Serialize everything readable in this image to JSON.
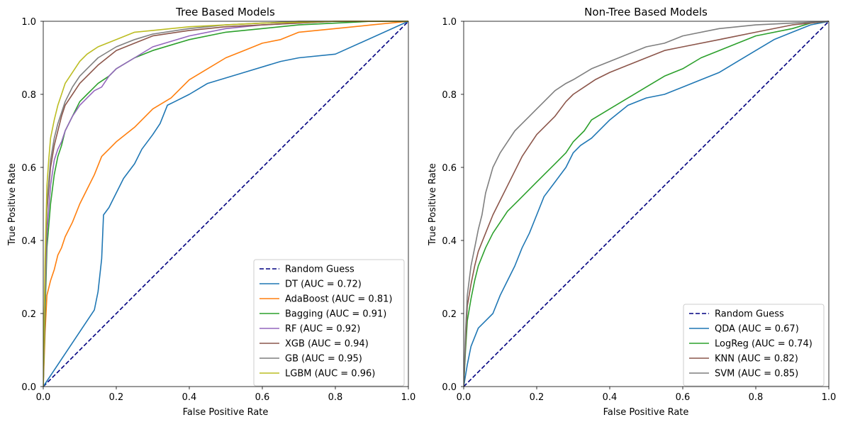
{
  "chart_data": [
    {
      "type": "line",
      "title": "Tree Based Models",
      "xlabel": "False Positive Rate",
      "ylabel": "True Positive Rate",
      "xlim": [
        0,
        1
      ],
      "ylim": [
        0,
        1
      ],
      "xticks": [
        "0.0",
        "0.2",
        "0.4",
        "0.6",
        "0.8",
        "1.0"
      ],
      "yticks": [
        "0.0",
        "0.2",
        "0.4",
        "0.6",
        "0.8",
        "1.0"
      ],
      "grid": false,
      "legend_position": "lower right",
      "series": [
        {
          "name": "Random Guess",
          "color": "#000080",
          "dash": true,
          "x": [
            0,
            1
          ],
          "y": [
            0,
            1
          ]
        },
        {
          "name": "DT (AUC = 0.72)",
          "color": "#1f77b4",
          "x": [
            0,
            0.14,
            0.15,
            0.16,
            0.165,
            0.18,
            0.19,
            0.22,
            0.25,
            0.27,
            0.3,
            0.32,
            0.34,
            0.36,
            0.4,
            0.45,
            0.55,
            0.65,
            0.7,
            0.8,
            1.0
          ],
          "y": [
            0,
            0.21,
            0.26,
            0.35,
            0.47,
            0.49,
            0.51,
            0.57,
            0.61,
            0.65,
            0.69,
            0.72,
            0.77,
            0.78,
            0.8,
            0.83,
            0.86,
            0.89,
            0.9,
            0.91,
            1.0
          ]
        }
      ]
    },
    {
      "type": "line",
      "title": "Non-Tree Based Models",
      "xlabel": "False Positive Rate",
      "ylabel": "True Positive Rate",
      "xlim": [
        0,
        1
      ],
      "ylim": [
        0,
        1
      ],
      "xticks": [
        "0.0",
        "0.2",
        "0.4",
        "0.6",
        "0.8",
        "1.0"
      ],
      "yticks": [
        "0.0",
        "0.2",
        "0.4",
        "0.6",
        "0.8",
        "1.0"
      ],
      "grid": false,
      "legend_position": "lower right",
      "series": [
        {
          "name": "Random Guess",
          "color": "#000080",
          "dash": true,
          "x": [
            0,
            1
          ],
          "y": [
            0,
            1
          ]
        }
      ]
    }
  ],
  "tree_curves": [
    {
      "name": "AdaBoost (AUC = 0.81)",
      "color": "#ff7f0e",
      "x": [
        0,
        0.005,
        0.01,
        0.02,
        0.03,
        0.04,
        0.05,
        0.06,
        0.08,
        0.1,
        0.12,
        0.14,
        0.16,
        0.18,
        0.2,
        0.25,
        0.3,
        0.35,
        0.4,
        0.45,
        0.5,
        0.55,
        0.6,
        0.65,
        0.7,
        0.8,
        0.9,
        1.0
      ],
      "y": [
        0,
        0.15,
        0.25,
        0.29,
        0.32,
        0.36,
        0.38,
        0.41,
        0.45,
        0.5,
        0.54,
        0.58,
        0.63,
        0.65,
        0.67,
        0.71,
        0.76,
        0.79,
        0.84,
        0.87,
        0.9,
        0.92,
        0.94,
        0.95,
        0.97,
        0.98,
        0.99,
        1.0
      ]
    },
    {
      "name": "Bagging (AUC = 0.91)",
      "color": "#2ca02c",
      "x": [
        0,
        0.005,
        0.01,
        0.02,
        0.03,
        0.04,
        0.05,
        0.06,
        0.08,
        0.1,
        0.12,
        0.15,
        0.18,
        0.2,
        0.25,
        0.3,
        0.4,
        0.5,
        0.6,
        0.7,
        0.8,
        0.9,
        1.0
      ],
      "y": [
        0,
        0.2,
        0.38,
        0.5,
        0.58,
        0.63,
        0.66,
        0.7,
        0.74,
        0.78,
        0.8,
        0.83,
        0.85,
        0.87,
        0.9,
        0.92,
        0.95,
        0.97,
        0.98,
        0.99,
        0.995,
        1.0,
        1.0
      ]
    },
    {
      "name": "RF (AUC = 0.92)",
      "color": "#9467bd",
      "x": [
        0,
        0.005,
        0.01,
        0.02,
        0.03,
        0.04,
        0.05,
        0.06,
        0.08,
        0.1,
        0.12,
        0.14,
        0.16,
        0.18,
        0.2,
        0.25,
        0.3,
        0.4,
        0.5,
        0.6,
        0.7,
        0.8,
        1.0
      ],
      "y": [
        0,
        0.25,
        0.42,
        0.55,
        0.62,
        0.65,
        0.67,
        0.7,
        0.74,
        0.77,
        0.79,
        0.81,
        0.82,
        0.85,
        0.87,
        0.9,
        0.93,
        0.96,
        0.98,
        0.99,
        0.995,
        1.0,
        1.0
      ]
    },
    {
      "name": "XGB (AUC = 0.94)",
      "color": "#8c564b",
      "x": [
        0,
        0.005,
        0.01,
        0.02,
        0.03,
        0.04,
        0.05,
        0.06,
        0.08,
        0.1,
        0.12,
        0.15,
        0.2,
        0.25,
        0.3,
        0.4,
        0.5,
        0.6,
        0.7,
        0.8,
        1.0
      ],
      "y": [
        0,
        0.3,
        0.48,
        0.6,
        0.66,
        0.7,
        0.74,
        0.77,
        0.8,
        0.83,
        0.85,
        0.88,
        0.92,
        0.94,
        0.96,
        0.975,
        0.985,
        0.99,
        0.995,
        1.0,
        1.0
      ]
    },
    {
      "name": "GB (AUC = 0.95)",
      "color": "#7f7f7f",
      "x": [
        0,
        0.005,
        0.01,
        0.02,
        0.03,
        0.04,
        0.05,
        0.06,
        0.08,
        0.1,
        0.12,
        0.15,
        0.2,
        0.25,
        0.3,
        0.4,
        0.5,
        0.6,
        0.7,
        0.8,
        1.0
      ],
      "y": [
        0,
        0.32,
        0.5,
        0.62,
        0.68,
        0.72,
        0.75,
        0.78,
        0.82,
        0.85,
        0.87,
        0.9,
        0.93,
        0.95,
        0.965,
        0.98,
        0.99,
        0.995,
        1.0,
        1.0,
        1.0
      ]
    },
    {
      "name": "LGBM (AUC = 0.96)",
      "color": "#bcbd22",
      "x": [
        0,
        0.005,
        0.01,
        0.015,
        0.02,
        0.03,
        0.04,
        0.05,
        0.06,
        0.08,
        0.1,
        0.12,
        0.15,
        0.2,
        0.25,
        0.3,
        0.4,
        0.5,
        0.6,
        0.8,
        1.0
      ],
      "y": [
        0,
        0.35,
        0.55,
        0.62,
        0.68,
        0.73,
        0.77,
        0.8,
        0.83,
        0.86,
        0.89,
        0.91,
        0.93,
        0.95,
        0.97,
        0.975,
        0.985,
        0.99,
        0.995,
        1.0,
        1.0
      ]
    }
  ],
  "nontree_curves": [
    {
      "name": "QDA (AUC = 0.67)",
      "color": "#1f77b4",
      "x": [
        0,
        0.01,
        0.02,
        0.04,
        0.06,
        0.08,
        0.1,
        0.12,
        0.14,
        0.16,
        0.18,
        0.2,
        0.22,
        0.25,
        0.28,
        0.3,
        0.32,
        0.35,
        0.4,
        0.45,
        0.5,
        0.55,
        0.6,
        0.65,
        0.7,
        0.75,
        0.8,
        0.85,
        0.9,
        0.95,
        1.0
      ],
      "y": [
        0,
        0.06,
        0.11,
        0.16,
        0.18,
        0.2,
        0.25,
        0.29,
        0.33,
        0.38,
        0.42,
        0.47,
        0.52,
        0.56,
        0.6,
        0.64,
        0.66,
        0.68,
        0.73,
        0.77,
        0.79,
        0.8,
        0.82,
        0.84,
        0.86,
        0.89,
        0.92,
        0.95,
        0.97,
        0.99,
        1.0
      ]
    },
    {
      "name": "LogReg (AUC = 0.74)",
      "color": "#2ca02c",
      "x": [
        0,
        0.005,
        0.01,
        0.02,
        0.03,
        0.04,
        0.06,
        0.08,
        0.1,
        0.12,
        0.15,
        0.18,
        0.2,
        0.22,
        0.25,
        0.28,
        0.3,
        0.33,
        0.35,
        0.4,
        0.45,
        0.5,
        0.55,
        0.6,
        0.65,
        0.7,
        0.75,
        0.8,
        0.9,
        0.95,
        1.0
      ],
      "y": [
        0,
        0.1,
        0.18,
        0.24,
        0.29,
        0.33,
        0.38,
        0.42,
        0.45,
        0.48,
        0.51,
        0.54,
        0.56,
        0.58,
        0.61,
        0.64,
        0.67,
        0.7,
        0.73,
        0.76,
        0.79,
        0.82,
        0.85,
        0.87,
        0.9,
        0.92,
        0.94,
        0.96,
        0.98,
        0.995,
        1.0
      ]
    },
    {
      "name": "KNN (AUC = 0.82)",
      "color": "#8c564b",
      "x": [
        0,
        0.005,
        0.01,
        0.02,
        0.03,
        0.04,
        0.06,
        0.08,
        0.1,
        0.12,
        0.14,
        0.16,
        0.18,
        0.2,
        0.22,
        0.25,
        0.28,
        0.3,
        0.33,
        0.36,
        0.4,
        0.45,
        0.5,
        0.55,
        0.6,
        0.7,
        0.8,
        0.9,
        1.0
      ],
      "y": [
        0,
        0.12,
        0.22,
        0.28,
        0.33,
        0.37,
        0.42,
        0.47,
        0.51,
        0.55,
        0.59,
        0.63,
        0.66,
        0.69,
        0.71,
        0.74,
        0.78,
        0.8,
        0.82,
        0.84,
        0.86,
        0.88,
        0.9,
        0.92,
        0.93,
        0.95,
        0.97,
        0.99,
        1.0
      ]
    },
    {
      "name": "SVM (AUC = 0.85)",
      "color": "#7f7f7f",
      "x": [
        0,
        0.005,
        0.01,
        0.02,
        0.03,
        0.04,
        0.05,
        0.06,
        0.08,
        0.1,
        0.12,
        0.14,
        0.16,
        0.18,
        0.2,
        0.22,
        0.25,
        0.28,
        0.3,
        0.35,
        0.4,
        0.45,
        0.5,
        0.55,
        0.6,
        0.7,
        0.8,
        0.9,
        1.0
      ],
      "y": [
        0,
        0.15,
        0.25,
        0.33,
        0.38,
        0.43,
        0.47,
        0.53,
        0.6,
        0.64,
        0.67,
        0.7,
        0.72,
        0.74,
        0.76,
        0.78,
        0.81,
        0.83,
        0.84,
        0.87,
        0.89,
        0.91,
        0.93,
        0.94,
        0.96,
        0.98,
        0.99,
        0.995,
        1.0
      ]
    }
  ]
}
